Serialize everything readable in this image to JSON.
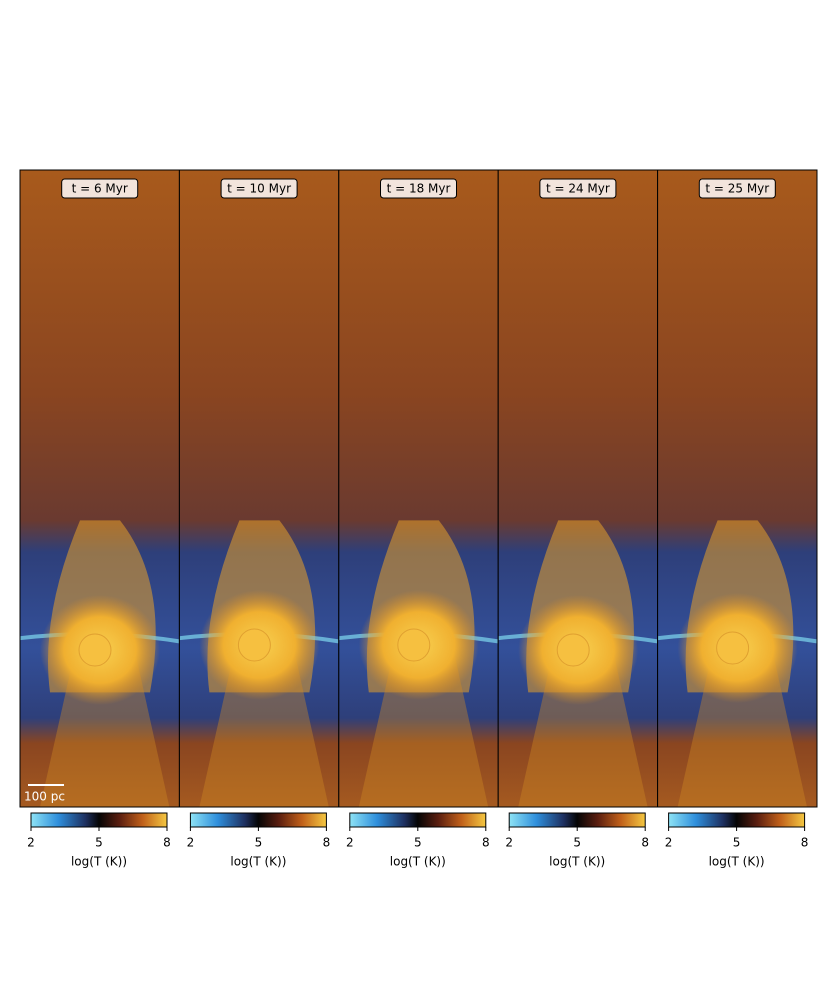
{
  "panels": [
    {
      "label": "t = 6 Myr",
      "colorbar": {
        "label": "log(T (K))",
        "lim": [
          2,
          8
        ],
        "ticks": [
          2,
          5,
          8
        ]
      }
    },
    {
      "label": "t = 10 Myr",
      "colorbar": {
        "label": "log(T (K))",
        "lim": [
          2,
          8
        ],
        "ticks": [
          2,
          5,
          8
        ]
      }
    },
    {
      "label": "t = 18 Myr",
      "colorbar": {
        "label": "log(T (K))",
        "lim": [
          2,
          8
        ],
        "ticks": [
          2,
          5,
          8
        ]
      }
    },
    {
      "label": "t = 24 Myr",
      "colorbar": {
        "label": "log(T (K))",
        "lim": [
          2,
          8
        ],
        "ticks": [
          2,
          5,
          8
        ]
      }
    },
    {
      "label": "t = 25 Myr",
      "colorbar": {
        "label": "log(T (K))",
        "lim": [
          2,
          8
        ],
        "ticks": [
          2,
          5,
          8
        ]
      }
    }
  ],
  "scale_bar": "100 pc"
}
